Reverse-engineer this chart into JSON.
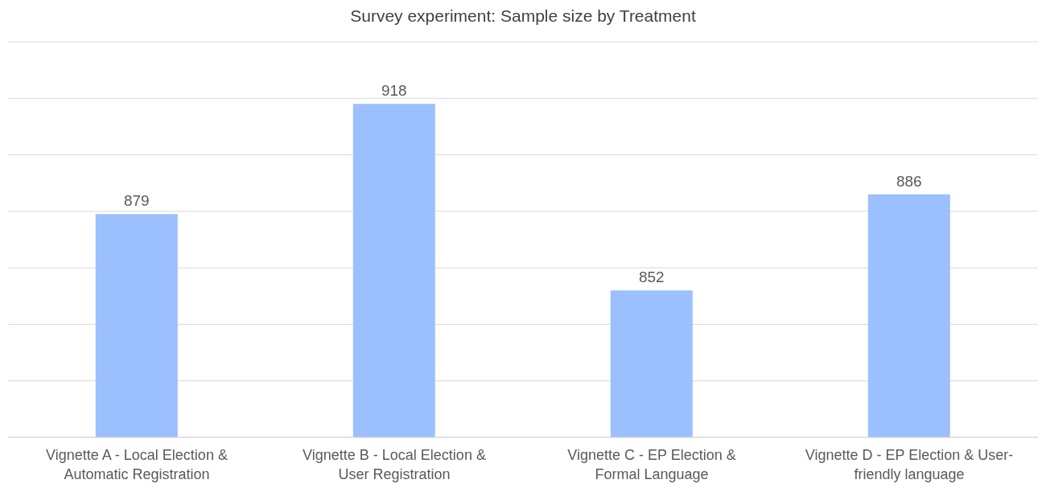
{
  "chart_data": {
    "type": "bar",
    "title": "Survey experiment: Sample size by Treatment",
    "categories": [
      "Vignette A - Local Election & Automatic Registration",
      "Vignette B - Local Election & User Registration",
      "Vignette C - EP Election & Formal Language",
      "Vignette D - EP Election & User-friendly language"
    ],
    "values": [
      879,
      918,
      852,
      886
    ],
    "color": "#9cbffe",
    "ylim": [
      800,
      940
    ],
    "yticks": [
      {
        "value": 800,
        "label": null
      },
      {
        "value": 820,
        "label": null
      },
      {
        "value": 840,
        "label": null
      },
      {
        "value": 860,
        "label": null
      },
      {
        "value": 880,
        "label": null
      },
      {
        "value": 900,
        "label": null
      },
      {
        "value": 920,
        "label": null
      },
      {
        "value": 940,
        "label": null
      }
    ],
    "tick_labels": "x",
    "grid": "y",
    "data_labels": true,
    "legend": false
  }
}
